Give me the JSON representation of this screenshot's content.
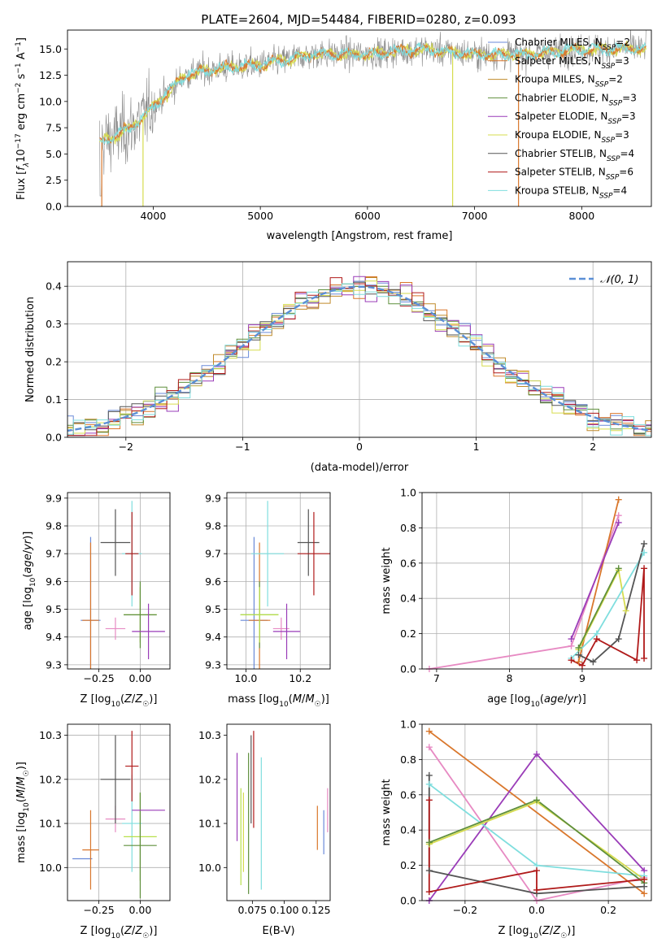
{
  "title": "PLATE=2604, MJD=54484, FIBERID=0280, z=0.093",
  "colors": {
    "Chabrier MILES": "#6a8ad8",
    "Salpeter MILES": "#d9772c",
    "Kroupa MILES": "#c08a2a",
    "Chabrier ELODIE": "#5f8f3c",
    "Salpeter ELODIE": "#9a3cb8",
    "Kroupa ELODIE": "#d6dc4e",
    "Chabrier STELIB": "#555555",
    "Salpeter STELIB": "#b01a1a",
    "Kroupa STELIB": "#7fdede",
    "extra_pink": "#e78ac3",
    "extra_lime": "#b8e04a",
    "normal": "#5b8fd6",
    "grid": "#b0b0b0"
  },
  "chart_data": [
    {
      "id": "spectrum",
      "type": "line",
      "xlabel": "wavelength [Angstrom, rest frame]",
      "ylabel": "Flux [f_λ10^-17 erg cm^-2 s^-1 A^-1]",
      "xlim": [
        3200,
        8650
      ],
      "ylim": [
        0,
        16.8
      ],
      "xticks": [
        4000,
        5000,
        6000,
        7000,
        8000
      ],
      "yticks": [
        0.0,
        2.5,
        5.0,
        7.5,
        10.0,
        12.5,
        15.0
      ],
      "grid": false,
      "legend_position": "top-right",
      "legend": [
        {
          "label": "Chabrier MILES, N",
          "sub": "SSP",
          "tail": "=2"
        },
        {
          "label": "Salpeter MILES, N",
          "sub": "SSP",
          "tail": "=3"
        },
        {
          "label": "Kroupa MILES, N",
          "sub": "SSP",
          "tail": "=2"
        },
        {
          "label": "Chabrier ELODIE, N",
          "sub": "SSP",
          "tail": "=3"
        },
        {
          "label": "Salpeter ELODIE, N",
          "sub": "SSP",
          "tail": "=3"
        },
        {
          "label": "Kroupa ELODIE, N",
          "sub": "SSP",
          "tail": "=3"
        },
        {
          "label": "Chabrier STELIB, N",
          "sub": "SSP",
          "tail": "=4"
        },
        {
          "label": "Salpeter STELIB, N",
          "sub": "SSP",
          "tail": "=6"
        },
        {
          "label": "Kroupa STELIB, N",
          "sub": "SSP",
          "tail": "=4"
        }
      ],
      "continuum": {
        "wavelength": [
          3500,
          3800,
          4000,
          4300,
          4500,
          5000,
          5500,
          6000,
          6500,
          7000,
          7500,
          8000,
          8500
        ],
        "flux": [
          6.0,
          7.5,
          9.5,
          12.5,
          13.0,
          13.5,
          14.5,
          14.5,
          15.0,
          14.5,
          14.5,
          15.0,
          15.0
        ]
      }
    },
    {
      "id": "residuals",
      "type": "line",
      "xlabel": "(data-model)/error",
      "ylabel": "Normed distribution",
      "xlim": [
        -2.5,
        2.5
      ],
      "ylim": [
        0,
        0.465
      ],
      "xticks": [
        -2,
        -1,
        0,
        1,
        2
      ],
      "yticks": [
        0.0,
        0.1,
        0.2,
        0.3,
        0.4
      ],
      "grid": true,
      "legend_position": "top-right",
      "legend": [
        "𝒩(0, 1)"
      ]
    },
    {
      "id": "age_vs_Z",
      "type": "scatter",
      "xlabel": "Z [log10(Z/Z☉)]",
      "ylabel": "age [log10(age/yr)]",
      "xlim": [
        -0.44,
        0.18
      ],
      "ylim": [
        9.285,
        9.92
      ],
      "xticks": [
        -0.25,
        0.0
      ],
      "yticks": [
        9.3,
        9.4,
        9.5,
        9.6,
        9.7,
        9.8,
        9.9
      ],
      "grid": true,
      "points": [
        {
          "s": "Chabrier MILES",
          "x": -0.3,
          "xe": 0.06,
          "y": 9.46,
          "ye": 0.3
        },
        {
          "s": "Salpeter MILES",
          "x": -0.3,
          "xe": 0.05,
          "y": 9.46,
          "ye": 0.28
        },
        {
          "s": "extra_pink",
          "x": -0.15,
          "xe": 0.06,
          "y": 9.43,
          "ye": 0.04
        },
        {
          "s": "Chabrier STELIB",
          "x": -0.15,
          "xe": 0.09,
          "y": 9.74,
          "ye": 0.12
        },
        {
          "s": "Kroupa STELIB",
          "x": -0.05,
          "xe": 0.06,
          "y": 9.7,
          "ye": 0.19
        },
        {
          "s": "Salpeter STELIB",
          "x": -0.05,
          "xe": 0.04,
          "y": 9.7,
          "ye": 0.15
        },
        {
          "s": "extra_lime",
          "x": 0.0,
          "xe": 0.1,
          "y": 9.48,
          "ye": 0.1
        },
        {
          "s": "Chabrier ELODIE",
          "x": 0.0,
          "xe": 0.1,
          "y": 9.48,
          "ye": 0.12
        },
        {
          "s": "Salpeter ELODIE",
          "x": 0.05,
          "xe": 0.1,
          "y": 9.42,
          "ye": 0.1
        }
      ]
    },
    {
      "id": "age_vs_mass",
      "type": "scatter",
      "xlabel": "mass [log10(M/M☉)]",
      "ylabel": "",
      "xlim": [
        9.93,
        10.31
      ],
      "ylim": [
        9.285,
        9.92
      ],
      "xticks": [
        10.0,
        10.2
      ],
      "yticks": [
        9.3,
        9.4,
        9.5,
        9.6,
        9.7,
        9.8,
        9.9
      ],
      "grid": true,
      "points": [
        {
          "s": "Chabrier MILES",
          "x": 10.03,
          "xe": 0.05,
          "y": 9.46,
          "ye": 0.3
        },
        {
          "s": "Salpeter MILES",
          "x": 10.05,
          "xe": 0.04,
          "y": 9.46,
          "ye": 0.28
        },
        {
          "s": "Kroupa STELIB",
          "x": 10.08,
          "xe": 0.06,
          "y": 9.7,
          "ye": 0.19
        },
        {
          "s": "Chabrier ELODIE",
          "x": 10.05,
          "xe": 0.07,
          "y": 9.48,
          "ye": 0.12
        },
        {
          "s": "extra_lime",
          "x": 10.05,
          "xe": 0.07,
          "y": 9.48,
          "ye": 0.1
        },
        {
          "s": "extra_pink",
          "x": 10.13,
          "xe": 0.03,
          "y": 9.43,
          "ye": 0.04
        },
        {
          "s": "Salpeter ELODIE",
          "x": 10.15,
          "xe": 0.05,
          "y": 9.42,
          "ye": 0.1
        },
        {
          "s": "Chabrier STELIB",
          "x": 10.23,
          "xe": 0.04,
          "y": 9.74,
          "ye": 0.12
        },
        {
          "s": "Salpeter STELIB",
          "x": 10.25,
          "xe": 0.06,
          "y": 9.7,
          "ye": 0.15
        }
      ]
    },
    {
      "id": "weight_vs_age",
      "type": "line",
      "xlabel": "age [log10(age/yr)]",
      "ylabel": "mass weight",
      "xlim": [
        6.8,
        9.95
      ],
      "ylim": [
        0,
        1.0
      ],
      "xticks": [
        7,
        8,
        9
      ],
      "yticks": [
        0.0,
        0.2,
        0.4,
        0.6,
        0.8,
        1.0
      ],
      "grid": true,
      "series": [
        {
          "s": "extra_pink",
          "x": [
            6.9,
            8.85,
            9.5
          ],
          "y": [
            0.0,
            0.13,
            0.87
          ]
        },
        {
          "s": "Salpeter MILES",
          "x": [
            8.95,
            9.5
          ],
          "y": [
            0.04,
            0.96
          ]
        },
        {
          "s": "Salpeter ELODIE",
          "x": [
            8.85,
            9.5
          ],
          "y": [
            0.17,
            0.83
          ]
        },
        {
          "s": "Kroupa ELODIE",
          "x": [
            8.95,
            9.5,
            9.6
          ],
          "y": [
            0.11,
            0.56,
            0.33
          ]
        },
        {
          "s": "Chabrier ELODIE",
          "x": [
            8.95,
            9.5
          ],
          "y": [
            0.12,
            0.57
          ]
        },
        {
          "s": "Kroupa STELIB",
          "x": [
            8.85,
            9.2,
            9.85
          ],
          "y": [
            0.06,
            0.2,
            0.66
          ]
        },
        {
          "s": "Chabrier STELIB",
          "x": [
            8.95,
            9.15,
            9.5,
            9.85
          ],
          "y": [
            0.08,
            0.04,
            0.17,
            0.71
          ]
        },
        {
          "s": "Salpeter STELIB",
          "x": [
            8.85,
            9.0,
            9.2,
            9.75,
            9.85,
            9.85
          ],
          "y": [
            0.05,
            0.02,
            0.17,
            0.05,
            0.57,
            0.06
          ]
        }
      ]
    },
    {
      "id": "mass_vs_Z",
      "type": "scatter",
      "xlabel": "Z [log10(Z/Z☉)]",
      "ylabel": "mass [log10(M/M☉)]",
      "xlim": [
        -0.44,
        0.18
      ],
      "ylim": [
        9.925,
        10.325
      ],
      "xticks": [
        -0.25,
        0.0
      ],
      "yticks": [
        10.0,
        10.1,
        10.2,
        10.3
      ],
      "grid": true,
      "points": [
        {
          "s": "Chabrier MILES",
          "x": -0.35,
          "xe": 0.06,
          "y": 10.02,
          "ye": 0.0
        },
        {
          "s": "Salpeter MILES",
          "x": -0.3,
          "xe": 0.05,
          "y": 10.04,
          "ye": 0.09
        },
        {
          "s": "extra_pink",
          "x": -0.15,
          "xe": 0.06,
          "y": 10.11,
          "ye": 0.03
        },
        {
          "s": "Chabrier STELIB",
          "x": -0.15,
          "xe": 0.09,
          "y": 10.2,
          "ye": 0.1
        },
        {
          "s": "Kroupa STELIB",
          "x": -0.05,
          "xe": 0.06,
          "y": 10.1,
          "ye": 0.11
        },
        {
          "s": "Salpeter STELIB",
          "x": -0.05,
          "xe": 0.04,
          "y": 10.23,
          "ye": 0.08
        },
        {
          "s": "extra_lime",
          "x": 0.0,
          "xe": 0.1,
          "y": 10.07,
          "ye": 0.1
        },
        {
          "s": "Chabrier ELODIE",
          "x": 0.0,
          "xe": 0.1,
          "y": 10.05,
          "ye": 0.12
        },
        {
          "s": "Salpeter ELODIE",
          "x": 0.05,
          "xe": 0.1,
          "y": 10.13,
          "ye": 0.0
        }
      ]
    },
    {
      "id": "mass_vs_EBV",
      "type": "scatter",
      "xlabel": "E(B-V)",
      "ylabel": "",
      "xlim": [
        0.055,
        0.136
      ],
      "ylim": [
        9.925,
        10.325
      ],
      "xticks": [
        0.075,
        0.1,
        0.125
      ],
      "xticklabels": [
        "0.075",
        "0.100",
        "0.125"
      ],
      "yticks": [
        10.0,
        10.1,
        10.2,
        10.3
      ],
      "grid": false,
      "points": [
        {
          "s": "Salpeter ELODIE",
          "x": 0.063,
          "y": 10.16,
          "ye": 0.1
        },
        {
          "s": "extra_lime",
          "x": 0.066,
          "y": 10.07,
          "ye": 0.11
        },
        {
          "s": "Kroupa ELODIE",
          "x": 0.068,
          "y": 10.08,
          "ye": 0.09
        },
        {
          "s": "Chabrier ELODIE",
          "x": 0.072,
          "y": 10.1,
          "ye": 0.16
        },
        {
          "s": "Chabrier STELIB",
          "x": 0.074,
          "y": 10.2,
          "ye": 0.1
        },
        {
          "s": "Salpeter STELIB",
          "x": 0.076,
          "y": 10.2,
          "ye": 0.11
        },
        {
          "s": "Kroupa STELIB",
          "x": 0.082,
          "y": 10.1,
          "ye": 0.15
        },
        {
          "s": "Salpeter MILES",
          "x": 0.126,
          "y": 10.09,
          "ye": 0.05
        },
        {
          "s": "Chabrier MILES",
          "x": 0.131,
          "y": 10.08,
          "ye": 0.05
        },
        {
          "s": "extra_pink",
          "x": 0.134,
          "y": 10.13,
          "ye": 0.05
        }
      ]
    },
    {
      "id": "weight_vs_Z",
      "type": "line",
      "xlabel": "Z [log10(Z/Z☉)]",
      "ylabel": "mass weight",
      "xlim": [
        -0.32,
        0.32
      ],
      "ylim": [
        0,
        1.0
      ],
      "xticks": [
        -0.2,
        0.0,
        0.2
      ],
      "yticks": [
        0.0,
        0.2,
        0.4,
        0.6,
        0.8,
        1.0
      ],
      "grid": true,
      "series": [
        {
          "s": "Salpeter MILES",
          "x": [
            -0.3,
            0.3
          ],
          "y": [
            0.96,
            0.04
          ]
        },
        {
          "s": "extra_pink",
          "x": [
            -0.3,
            0.0,
            0.3
          ],
          "y": [
            0.87,
            0.0,
            0.13
          ]
        },
        {
          "s": "Salpeter ELODIE",
          "x": [
            -0.3,
            0.0,
            0.3
          ],
          "y": [
            0.0,
            0.83,
            0.17
          ]
        },
        {
          "s": "Kroupa STELIB",
          "x": [
            -0.3,
            0.0,
            0.3
          ],
          "y": [
            0.66,
            0.2,
            0.14
          ]
        },
        {
          "s": "Kroupa ELODIE",
          "x": [
            -0.3,
            0.0,
            0.3
          ],
          "y": [
            0.32,
            0.56,
            0.12
          ]
        },
        {
          "s": "Chabrier ELODIE",
          "x": [
            -0.3,
            0.0,
            0.3
          ],
          "y": [
            0.33,
            0.57,
            0.1
          ]
        },
        {
          "s": "Chabrier STELIB",
          "x": [
            -0.3,
            -0.3,
            0.0,
            0.3
          ],
          "y": [
            0.71,
            0.17,
            0.04,
            0.08
          ]
        },
        {
          "s": "Salpeter STELIB",
          "x": [
            -0.3,
            -0.3,
            0.0,
            0.0,
            0.3
          ],
          "y": [
            0.57,
            0.05,
            0.17,
            0.06,
            0.12
          ]
        }
      ]
    }
  ]
}
